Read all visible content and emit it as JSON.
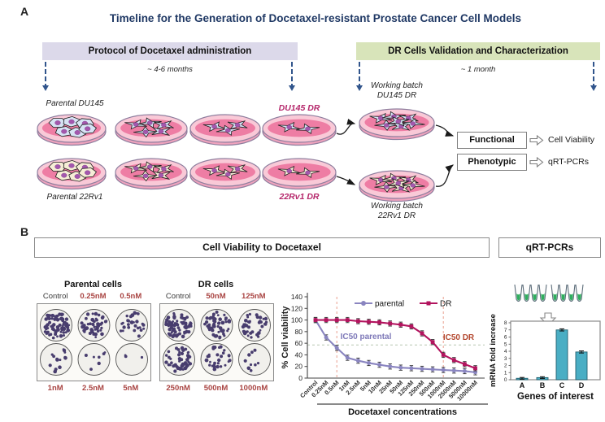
{
  "figure": {
    "panelA": {
      "label": "A",
      "title": "Timeline for the Generation of Docetaxel-resistant Prostate Cancer Cell Models",
      "protocol_header": "Protocol of Docetaxel administration",
      "protocol_duration": "~ 4-6 months",
      "validation_header": "DR Cells Validation and Characterization",
      "validation_duration": "~ 1 month",
      "dish_cell_counts": [
        6,
        5,
        3,
        2,
        7
      ],
      "rows": [
        {
          "parental_label": "Parental DU145",
          "dr_label": "DU145 DR",
          "working_batch_label": "Working batch\nDU145 DR"
        },
        {
          "parental_label": "Parental 22Rv1",
          "dr_label": "22Rv1 DR",
          "working_batch_label": "Working batch\n22Rv1 DR"
        }
      ],
      "outcomes": [
        {
          "category": "Functional",
          "readout": "Cell Viability"
        },
        {
          "category": "Phenotypic",
          "readout": "qRT-PCRs"
        }
      ]
    },
    "panelB": {
      "label": "B",
      "viability_header": "Cell Viability to Docetaxel",
      "qrtpcr_header": "qRT-PCRs",
      "colony_assays": [
        {
          "title": "Parental cells",
          "top_labels": [
            "Control",
            "0.25nM",
            "0.5nM"
          ],
          "bottom_labels": [
            "1nM",
            "2.5nM",
            "5nM"
          ],
          "approx_colony_counts": [
            70,
            46,
            28,
            14,
            7,
            3
          ]
        },
        {
          "title": "DR cells",
          "top_labels": [
            "Control",
            "50nM",
            "125nM"
          ],
          "bottom_labels": [
            "250nM",
            "500nM",
            "1000nM"
          ],
          "approx_colony_counts": [
            70,
            56,
            42,
            48,
            30,
            9
          ]
        }
      ]
    }
  },
  "chart_data": [
    {
      "type": "line",
      "xlabel": "Docetaxel concentrations",
      "ylabel": "% Cell viability",
      "ylim": [
        0,
        140
      ],
      "yticks": [
        0,
        20,
        40,
        60,
        80,
        100,
        120,
        140
      ],
      "categories": [
        "Control",
        "0.25nM",
        "0.5nM",
        "1nM",
        "2.5nM",
        "5nM",
        "10nM",
        "25nM",
        "50nM",
        "125nM",
        "250nM",
        "500nM",
        "1000nM",
        "2500nM",
        "5000nM",
        "10000nM"
      ],
      "series": [
        {
          "name": "parental",
          "color": "#8a85c0",
          "marker": "circle",
          "values": [
            100,
            70,
            52,
            35,
            30,
            26,
            23,
            20,
            18,
            17,
            16,
            15,
            14,
            13,
            12,
            10
          ]
        },
        {
          "name": "DR",
          "color": "#b2145e",
          "marker": "square",
          "values": [
            100,
            100,
            100,
            100,
            98,
            97,
            96,
            94,
            92,
            89,
            77,
            62,
            40,
            31,
            24,
            17
          ]
        }
      ],
      "annotations": [
        {
          "text": "IC50 parental",
          "color": "#7d78b8",
          "x": 106,
          "y": 67
        },
        {
          "text": "IC50 DR",
          "color": "#b3472e",
          "x": 220,
          "y": 68
        }
      ],
      "ref_lines": {
        "vertical_at": [
          "0.5nM",
          "1000nM"
        ],
        "vertical_color": "#eaa08f",
        "horizontal_at": 57,
        "horizontal_color": "#b8c7b0"
      },
      "legend_position": "top-inside",
      "grid": false
    },
    {
      "type": "bar",
      "xlabel": "Genes of interest",
      "ylabel": "mRNA fold increase",
      "ylim": [
        0,
        8
      ],
      "yticks": [
        0,
        1,
        2,
        3,
        4,
        5,
        6,
        7,
        8
      ],
      "categories": [
        "A",
        "B",
        "C",
        "D"
      ],
      "values": [
        0.2,
        0.3,
        7.0,
        3.9
      ],
      "error": [
        0.12,
        0.12,
        0.15,
        0.15
      ],
      "bar_color": "#4aaec4"
    }
  ],
  "colors": {
    "title_navy": "#1f3864",
    "protocol_box_bg": "#dcd9ea",
    "validation_box_bg": "#d8e4ba",
    "timeline_arrow": "#31558c",
    "dr_label": "#b5276b",
    "concentration_label": "#a94442",
    "parental_series": "#8a85c0",
    "dr_series": "#b2145e",
    "bar_fill": "#4aaec4",
    "tube_liquid_green": "#2fae5e",
    "colony_dot": "#483d6e"
  }
}
